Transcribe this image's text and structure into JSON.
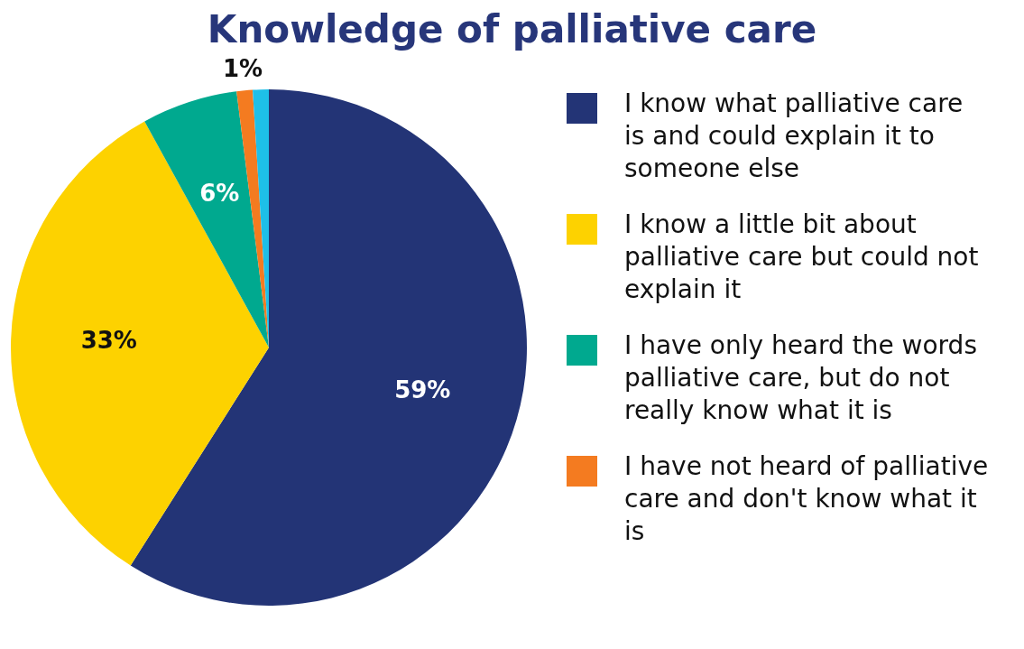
{
  "chart_data": {
    "type": "pie",
    "title": "Knowledge of palliative care",
    "categories": [
      "I know what palliative care is and could explain it to someone else",
      "I know a little bit about palliative care but could not explain it",
      "I have only heard the words palliative care, but do not really know what it is",
      "I have not heard of palliative care and don't know what it is",
      null
    ],
    "values": [
      59,
      33,
      6,
      1,
      1
    ],
    "colors": [
      "#233476",
      "#fdd200",
      "#00a98f",
      "#f47b20",
      "#1ebfe8"
    ],
    "value_labels": [
      "59%",
      "33%",
      "6%",
      "1%",
      null
    ],
    "legend": "right"
  }
}
